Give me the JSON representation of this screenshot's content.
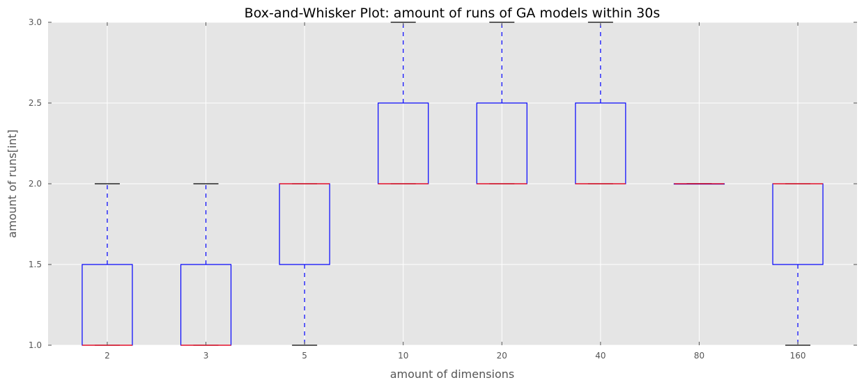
{
  "chart_data": {
    "type": "box",
    "title": "Box-and-Whisker Plot: amount of runs of GA models within 30s",
    "xlabel": "amount of dimensions",
    "ylabel": "amount of runs[int]",
    "ylim": [
      1.0,
      3.0
    ],
    "yticks": [
      "1.0",
      "1.5",
      "2.0",
      "2.5",
      "3.0"
    ],
    "categories": [
      "2",
      "3",
      "5",
      "10",
      "20",
      "40",
      "80",
      "160"
    ],
    "boxes": [
      {
        "min": 1.0,
        "q1": 1.0,
        "median": 1.0,
        "q3": 1.5,
        "max": 2.0
      },
      {
        "min": 1.0,
        "q1": 1.0,
        "median": 1.0,
        "q3": 1.5,
        "max": 2.0
      },
      {
        "min": 1.0,
        "q1": 1.5,
        "median": 2.0,
        "q3": 2.0,
        "max": 2.0
      },
      {
        "min": 2.0,
        "q1": 2.0,
        "median": 2.0,
        "q3": 2.5,
        "max": 3.0
      },
      {
        "min": 2.0,
        "q1": 2.0,
        "median": 2.0,
        "q3": 2.5,
        "max": 3.0
      },
      {
        "min": 2.0,
        "q1": 2.0,
        "median": 2.0,
        "q3": 2.5,
        "max": 3.0
      },
      {
        "min": 2.0,
        "q1": 2.0,
        "median": 2.0,
        "q3": 2.0,
        "max": 2.0
      },
      {
        "min": 1.0,
        "q1": 1.5,
        "median": 2.0,
        "q3": 2.0,
        "max": 2.0
      }
    ],
    "grid": true,
    "colors": {
      "background": "#e5e5e5",
      "grid": "#ffffff",
      "box": "#0000ff",
      "median": "#ff0000",
      "whisker": "#0000ff",
      "cap": "#000000"
    }
  }
}
